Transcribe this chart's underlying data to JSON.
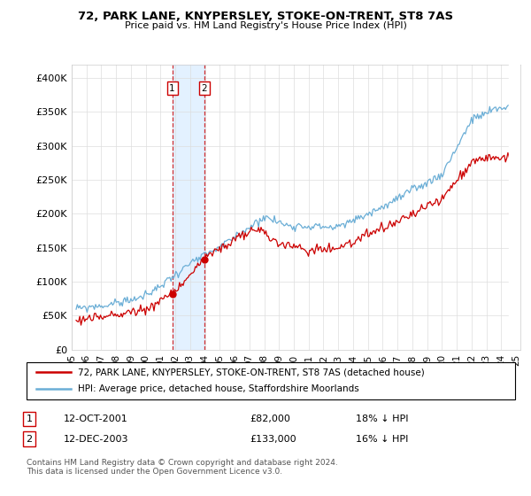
{
  "title": "72, PARK LANE, KNYPERSLEY, STOKE-ON-TRENT, ST8 7AS",
  "subtitle": "Price paid vs. HM Land Registry's House Price Index (HPI)",
  "legend_line1": "72, PARK LANE, KNYPERSLEY, STOKE-ON-TRENT, ST8 7AS (detached house)",
  "legend_line2": "HPI: Average price, detached house, Staffordshire Moorlands",
  "sale1_label": "1",
  "sale1_date": "12-OCT-2001",
  "sale1_price": "£82,000",
  "sale1_hpi": "18% ↓ HPI",
  "sale2_label": "2",
  "sale2_date": "12-DEC-2003",
  "sale2_price": "£133,000",
  "sale2_hpi": "16% ↓ HPI",
  "footnote": "Contains HM Land Registry data © Crown copyright and database right 2024.\nThis data is licensed under the Open Government Licence v3.0.",
  "hpi_color": "#6baed6",
  "price_color": "#cc0000",
  "sale1_x": 2001.79,
  "sale1_y": 82000,
  "sale2_x": 2003.96,
  "sale2_y": 133000,
  "vline1_x": 2001.79,
  "vline2_x": 2003.96,
  "ylim": [
    0,
    420000
  ],
  "xlim_start": 1995.3,
  "xlim_end": 2025.3,
  "bg_rect_x1": 2001.79,
  "bg_rect_x2": 2003.96
}
